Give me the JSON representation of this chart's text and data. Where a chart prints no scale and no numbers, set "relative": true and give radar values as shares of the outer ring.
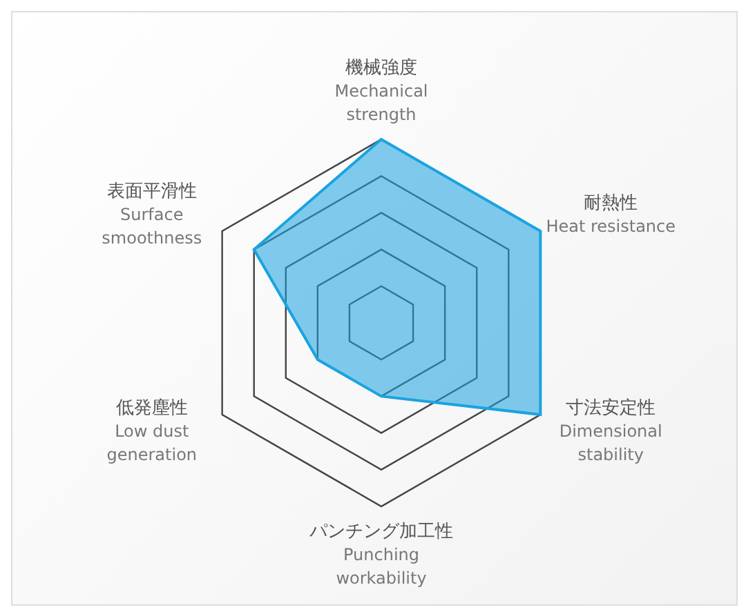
{
  "chart_data": {
    "type": "radar",
    "relative": true,
    "categories": [
      "機械強度\nMechanical strength",
      "耐熱性\nHeat resistance",
      "寸法安定性\nDimensional stability",
      "パンチング加工性\nPunching workability",
      "低発塵性\nLow dust generation",
      "表面平滑性\nSurface smoothness"
    ],
    "series": [
      {
        "color": "#1aa3e0",
        "values": [
          1,
          1,
          1,
          0.4,
          0.4,
          0.8
        ]
      }
    ],
    "grid": true,
    "marker": "none"
  }
}
